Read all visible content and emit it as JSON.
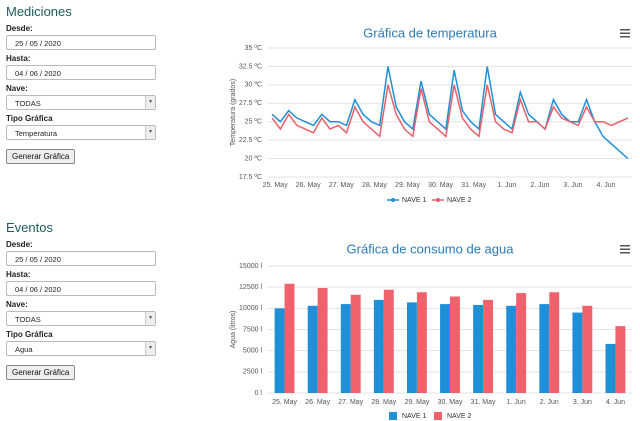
{
  "forms": [
    {
      "title": "Mediciones",
      "fields": [
        {
          "label": "Desde:",
          "value": "25 / 05 / 2020"
        },
        {
          "label": "Hasta:",
          "value": "04 / 06 / 2020"
        },
        {
          "label": "Nave:",
          "value": "TODAS"
        },
        {
          "label": "Tipo Gráfica",
          "value": "Temperatura"
        }
      ],
      "button": "Generar Gráfica"
    },
    {
      "title": "Eventos",
      "fields": [
        {
          "label": "Desde:",
          "value": "25 / 05 / 2020"
        },
        {
          "label": "Hasta:",
          "value": "04 / 06 / 2020"
        },
        {
          "label": "Nave:",
          "value": "TODAS"
        },
        {
          "label": "Tipo Gráfica",
          "value": "Agua"
        }
      ],
      "button": "Generar Gráfica"
    }
  ],
  "chart_data": [
    {
      "type": "line",
      "title": "Gráfica de temperatura",
      "y_label": "Temperatura (grados)",
      "categories": [
        "25. May",
        null,
        null,
        null,
        "26. May",
        null,
        null,
        null,
        "27. May",
        null,
        null,
        null,
        "28. May",
        null,
        null,
        null,
        "29. May",
        null,
        null,
        null,
        "30. May",
        null,
        null,
        null,
        "31. May",
        null,
        null,
        null,
        "1. Jun",
        null,
        null,
        null,
        "2. Jun",
        null,
        null,
        null,
        "3. Jun",
        null,
        null,
        null,
        "4. Jun",
        null,
        null,
        null
      ],
      "series": [
        {
          "name": "NAVE 1",
          "color": "#1f8fd8",
          "values": [
            26,
            25,
            26.5,
            25.5,
            25,
            24.5,
            26,
            25,
            25,
            24.5,
            28,
            26,
            25,
            24.5,
            32.5,
            27,
            25,
            24,
            30.5,
            26,
            25,
            24,
            32,
            26.5,
            25,
            24,
            32.5,
            26,
            25,
            24,
            29,
            26,
            25,
            24,
            28,
            26,
            25,
            25,
            28,
            25,
            23,
            22,
            21,
            20
          ]
        },
        {
          "name": "NAVE 2",
          "color": "#e8606a",
          "values": [
            25.5,
            24,
            26,
            24.5,
            24,
            23.5,
            25.5,
            24,
            24.5,
            23.5,
            27,
            25,
            24,
            23,
            30,
            26,
            24,
            23,
            29.5,
            25,
            24,
            23,
            30,
            25.5,
            24,
            23,
            30,
            25,
            24,
            23.5,
            28,
            25,
            25,
            24,
            27,
            25.5,
            25,
            24.5,
            27,
            25,
            25,
            24.5,
            25,
            25.5
          ]
        }
      ],
      "ylim": [
        17.5,
        35
      ],
      "yticks": [
        {
          "value": 17.5,
          "label": "17.5 ºC"
        },
        {
          "value": 20,
          "label": "20 ºC"
        },
        {
          "value": 22.5,
          "label": "22.5 ºC"
        },
        {
          "value": 25,
          "label": "25 ºC"
        },
        {
          "value": 27.5,
          "label": "27.5 ºC"
        },
        {
          "value": 30,
          "label": "30 ºC"
        },
        {
          "value": 32.5,
          "label": "32.5 ºC"
        },
        {
          "value": 35,
          "label": "35 ºC"
        }
      ],
      "grid": true
    },
    {
      "type": "bar",
      "title": "Gráfica de consumo de agua",
      "y_label": "Agua (litros)",
      "categories": [
        "25. May",
        "26. May",
        "27. May",
        "28. May",
        "29. May",
        "30. May",
        "31. May",
        "1. Jun",
        "2. Jun",
        "3. Jun",
        "4. Jun"
      ],
      "series": [
        {
          "name": "NAVE 1",
          "color": "#1f8fd8",
          "values": [
            10000,
            10300,
            10500,
            11000,
            10700,
            10500,
            10400,
            10300,
            10500,
            9500,
            5800
          ]
        },
        {
          "name": "NAVE 2",
          "color": "#f0626b",
          "values": [
            12900,
            12400,
            11600,
            12200,
            11900,
            11400,
            11000,
            11800,
            11900,
            10300,
            7900
          ]
        }
      ],
      "ylim": [
        0,
        15000
      ],
      "yticks": [
        {
          "value": 0,
          "label": "0 l"
        },
        {
          "value": 2500,
          "label": "2500 l"
        },
        {
          "value": 5000,
          "label": "5000 l"
        },
        {
          "value": 7500,
          "label": "7500 l"
        },
        {
          "value": 10000,
          "label": "10000 l"
        },
        {
          "value": 12500,
          "label": "12500 l"
        },
        {
          "value": 15000,
          "label": "15000 l"
        }
      ],
      "grid": true
    }
  ]
}
